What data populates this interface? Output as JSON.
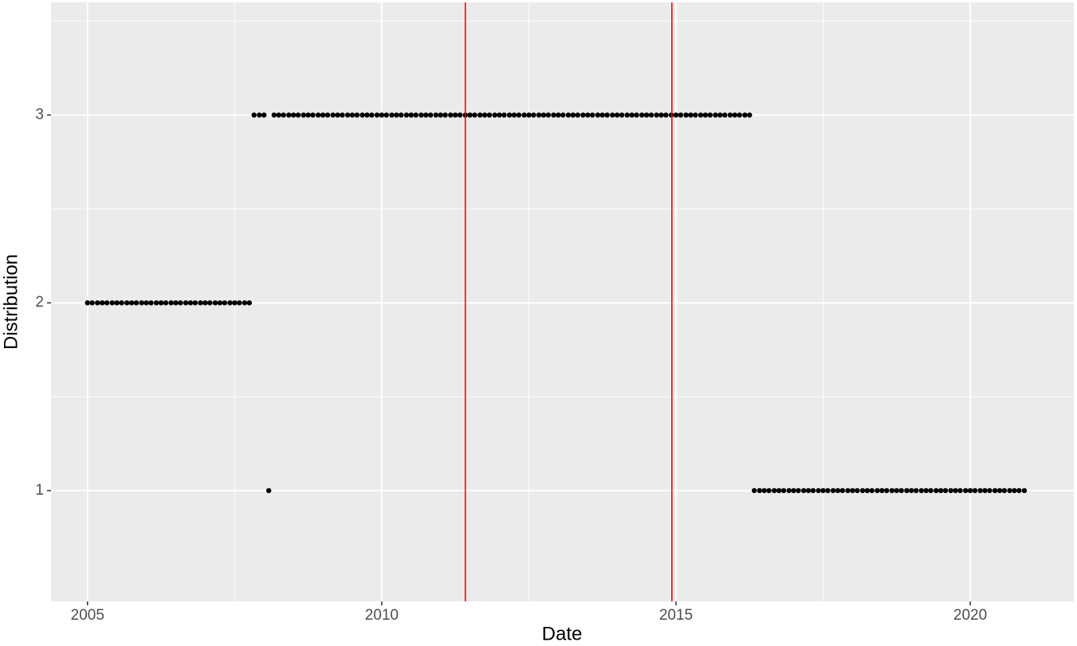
{
  "chart_data": {
    "type": "scatter",
    "x_label": "Date",
    "y_label": "Distribution",
    "xlim": [
      2004.38,
      2021.76
    ],
    "ylim": [
      0.41,
      3.6
    ],
    "xticks": [
      2005,
      2010,
      2015,
      2020
    ],
    "yticks": [
      1,
      2,
      3
    ],
    "minor_xticks": [
      2007.5,
      2012.5,
      2017.5
    ],
    "minor_yticks": [
      1.5,
      2.5,
      3.5
    ],
    "grid": true,
    "color": "#000000",
    "vlines": [
      2011.42,
      2014.93
    ],
    "vline_color": "#ff0000",
    "x": [
      2005,
      2005.08,
      2005.17,
      2005.25,
      2005.33,
      2005.42,
      2005.5,
      2005.58,
      2005.67,
      2005.75,
      2005.83,
      2005.92,
      2006,
      2006.08,
      2006.17,
      2006.25,
      2006.33,
      2006.42,
      2006.5,
      2006.58,
      2006.67,
      2006.75,
      2006.83,
      2006.92,
      2007,
      2007.08,
      2007.17,
      2007.25,
      2007.33,
      2007.42,
      2007.5,
      2007.58,
      2007.67,
      2007.75,
      2007.83,
      2007.92,
      2008,
      2008.08,
      2008.17,
      2008.25,
      2008.33,
      2008.42,
      2008.5,
      2008.58,
      2008.67,
      2008.75,
      2008.83,
      2008.92,
      2009,
      2009.08,
      2009.17,
      2009.25,
      2009.33,
      2009.42,
      2009.5,
      2009.58,
      2009.67,
      2009.75,
      2009.83,
      2009.92,
      2010,
      2010.08,
      2010.17,
      2010.25,
      2010.33,
      2010.42,
      2010.5,
      2010.58,
      2010.67,
      2010.75,
      2010.83,
      2010.92,
      2011,
      2011.08,
      2011.17,
      2011.25,
      2011.33,
      2011.42,
      2011.5,
      2011.58,
      2011.67,
      2011.75,
      2011.83,
      2011.92,
      2012,
      2012.08,
      2012.17,
      2012.25,
      2012.33,
      2012.42,
      2012.5,
      2012.58,
      2012.67,
      2012.75,
      2012.83,
      2012.92,
      2013,
      2013.08,
      2013.17,
      2013.25,
      2013.33,
      2013.42,
      2013.5,
      2013.58,
      2013.67,
      2013.75,
      2013.83,
      2013.92,
      2014,
      2014.08,
      2014.17,
      2014.25,
      2014.33,
      2014.42,
      2014.5,
      2014.58,
      2014.67,
      2014.75,
      2014.83,
      2014.92,
      2015,
      2015.08,
      2015.17,
      2015.25,
      2015.33,
      2015.42,
      2015.5,
      2015.58,
      2015.67,
      2015.75,
      2015.83,
      2015.92,
      2016,
      2016.08,
      2016.17,
      2016.25,
      2016.33,
      2016.42,
      2016.5,
      2016.58,
      2016.67,
      2016.75,
      2016.83,
      2016.92,
      2017,
      2017.08,
      2017.17,
      2017.25,
      2017.33,
      2017.42,
      2017.5,
      2017.58,
      2017.67,
      2017.75,
      2017.83,
      2017.92,
      2018,
      2018.08,
      2018.17,
      2018.25,
      2018.33,
      2018.42,
      2018.5,
      2018.58,
      2018.67,
      2018.75,
      2018.83,
      2018.92,
      2019,
      2019.08,
      2019.17,
      2019.25,
      2019.33,
      2019.42,
      2019.5,
      2019.58,
      2019.67,
      2019.75,
      2019.83,
      2019.92,
      2020,
      2020.08,
      2020.17,
      2020.25,
      2020.33,
      2020.42,
      2020.5,
      2020.58,
      2020.67,
      2020.75,
      2020.83,
      2020.92
    ],
    "values": [
      2,
      2,
      2,
      2,
      2,
      2,
      2,
      2,
      2,
      2,
      2,
      2,
      2,
      2,
      2,
      2,
      2,
      2,
      2,
      2,
      2,
      2,
      2,
      2,
      2,
      2,
      2,
      2,
      2,
      2,
      2,
      2,
      2,
      2,
      3,
      3,
      3,
      1,
      3,
      3,
      3,
      3,
      3,
      3,
      3,
      3,
      3,
      3,
      3,
      3,
      3,
      3,
      3,
      3,
      3,
      3,
      3,
      3,
      3,
      3,
      3,
      3,
      3,
      3,
      3,
      3,
      3,
      3,
      3,
      3,
      3,
      3,
      3,
      3,
      3,
      3,
      3,
      3,
      3,
      3,
      3,
      3,
      3,
      3,
      3,
      3,
      3,
      3,
      3,
      3,
      3,
      3,
      3,
      3,
      3,
      3,
      3,
      3,
      3,
      3,
      3,
      3,
      3,
      3,
      3,
      3,
      3,
      3,
      3,
      3,
      3,
      3,
      3,
      3,
      3,
      3,
      3,
      3,
      3,
      3,
      3,
      3,
      3,
      3,
      3,
      3,
      3,
      3,
      3,
      3,
      3,
      3,
      3,
      3,
      3,
      3,
      1,
      1,
      1,
      1,
      1,
      1,
      1,
      1,
      1,
      1,
      1,
      1,
      1,
      1,
      1,
      1,
      1,
      1,
      1,
      1,
      1,
      1,
      1,
      1,
      1,
      1,
      1,
      1,
      1,
      1,
      1,
      1,
      1,
      1,
      1,
      1,
      1,
      1,
      1,
      1,
      1,
      1,
      1,
      1,
      1,
      1,
      1,
      1,
      1,
      1,
      1,
      1,
      1,
      1,
      1,
      1
    ]
  }
}
